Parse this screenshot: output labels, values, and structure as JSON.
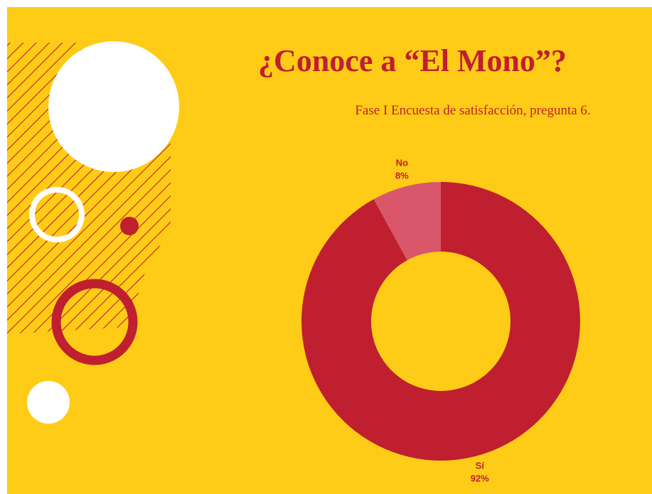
{
  "chart_data": {
    "type": "pie",
    "donut": true,
    "title": "¿Conoce a “El Mono”?",
    "subtitle": "Fase I Encuesta de satisfacción, pregunta 6.",
    "categories": [
      "Sí",
      "No"
    ],
    "values": [
      92,
      8
    ],
    "value_labels": [
      "92%",
      "8%"
    ],
    "colors": [
      "#c01f2f",
      "#d9566b"
    ]
  }
}
